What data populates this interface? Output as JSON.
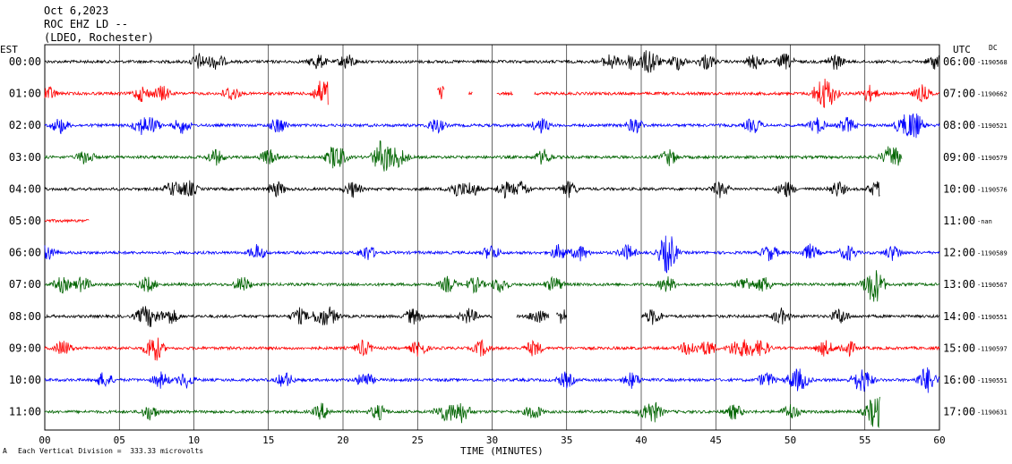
{
  "header": {
    "date": "Oct 6,2023",
    "station": "ROC EHZ LD --",
    "network": "(LDEO, Rochester)"
  },
  "labels": {
    "left_tz": "EST",
    "right_tz": "UTC",
    "dc": "DC",
    "xlabel": "TIME (MINUTES)",
    "scale_note": "Each Vertical Division =  333.33 microvolts",
    "corner_mark": "A"
  },
  "colors": {
    "cycle": [
      "#000000",
      "#ff0000",
      "#0000ff",
      "#006400"
    ],
    "grid": "#000000"
  },
  "chart_data": {
    "type": "line",
    "title": "ROC EHZ LD -- (LDEO, Rochester) Oct 6,2023",
    "xlabel": "TIME (MINUTES)",
    "xlim": [
      0,
      60
    ],
    "x_ticks": [
      "00",
      "05",
      "10",
      "15",
      "20",
      "25",
      "30",
      "35",
      "40",
      "45",
      "50",
      "55",
      "60"
    ],
    "rows": [
      {
        "est": "00:00",
        "utc": "06:00",
        "dc": "-1190568",
        "color_index": 0,
        "gaps": []
      },
      {
        "est": "01:00",
        "utc": "07:00",
        "dc": "-1190662",
        "color_index": 1,
        "gaps": [
          [
            19,
            26.3
          ],
          [
            26.8,
            28.4
          ],
          [
            28.7,
            30.3
          ],
          [
            31.4,
            32.2
          ],
          [
            32.8,
            31.9
          ]
        ]
      },
      {
        "est": "02:00",
        "utc": "08:00",
        "dc": "-1190521",
        "color_index": 2,
        "gaps": []
      },
      {
        "est": "03:00",
        "utc": "09:00",
        "dc": "-1190579",
        "color_index": 3,
        "gaps": [
          [
            57.5,
            60
          ]
        ]
      },
      {
        "est": "04:00",
        "utc": "10:00",
        "dc": "-1190576",
        "color_index": 0,
        "gaps": [
          [
            56,
            60
          ]
        ]
      },
      {
        "est": "05:00",
        "utc": "11:00",
        "dc": "-nan",
        "color_index": 1,
        "gaps": [
          [
            3,
            60
          ]
        ]
      },
      {
        "est": "06:00",
        "utc": "12:00",
        "dc": "-1190589",
        "color_index": 2,
        "gaps": []
      },
      {
        "est": "07:00",
        "utc": "13:00",
        "dc": "-1190567",
        "color_index": 3,
        "gaps": []
      },
      {
        "est": "08:00",
        "utc": "14:00",
        "dc": "-1190551",
        "color_index": 0,
        "gaps": [
          [
            30,
            31.6
          ],
          [
            33.8,
            34.3
          ],
          [
            35,
            40
          ]
        ]
      },
      {
        "est": "09:00",
        "utc": "15:00",
        "dc": "-1190597",
        "color_index": 1,
        "gaps": []
      },
      {
        "est": "10:00",
        "utc": "16:00",
        "dc": "-1190551",
        "color_index": 2,
        "gaps": []
      },
      {
        "est": "11:00",
        "utc": "17:00",
        "dc": "-1190631",
        "color_index": 3,
        "gaps": [
          [
            56,
            60
          ]
        ]
      }
    ]
  }
}
